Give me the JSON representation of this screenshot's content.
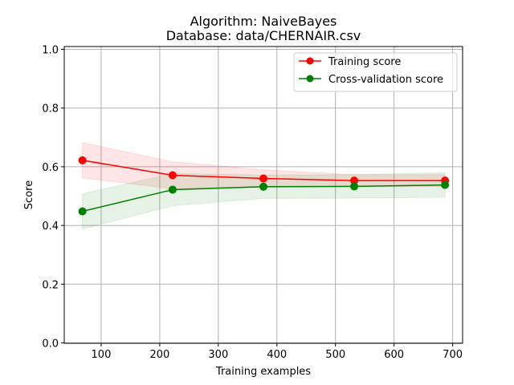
{
  "chart_data": {
    "type": "line",
    "title": "Algorithm: NaiveBayes",
    "subtitle": "Database: data/CHERNAIR.csv",
    "xlabel": "Training examples",
    "ylabel": "Score",
    "xlim": [
      37,
      717
    ],
    "ylim": [
      0.0,
      1.0
    ],
    "xticks": [
      100,
      200,
      300,
      400,
      500,
      600,
      700
    ],
    "yticks": [
      0.0,
      0.2,
      0.4,
      0.6,
      0.8,
      1.0
    ],
    "xtick_labels": [
      "100",
      "200",
      "300",
      "400",
      "500",
      "600",
      "700"
    ],
    "ytick_labels": [
      "0.0",
      "0.2",
      "0.4",
      "0.6",
      "0.8",
      "1.0"
    ],
    "grid": true,
    "legend_position": "upper-right",
    "x": [
      68,
      222,
      377,
      532,
      687
    ],
    "series": [
      {
        "name": "Training score",
        "color": "#ff0000",
        "band_color": "#ff0000",
        "values": [
          0.622,
          0.571,
          0.56,
          0.553,
          0.553
        ],
        "band_upper": [
          0.682,
          0.617,
          0.59,
          0.573,
          0.573
        ],
        "band_lower": [
          0.562,
          0.525,
          0.53,
          0.533,
          0.533
        ]
      },
      {
        "name": "Cross-validation score",
        "color": "#008000",
        "band_color": "#008000",
        "values": [
          0.448,
          0.522,
          0.532,
          0.533,
          0.538
        ],
        "band_upper": [
          0.508,
          0.577,
          0.572,
          0.573,
          0.58
        ],
        "band_lower": [
          0.388,
          0.467,
          0.492,
          0.493,
          0.496
        ]
      }
    ]
  }
}
